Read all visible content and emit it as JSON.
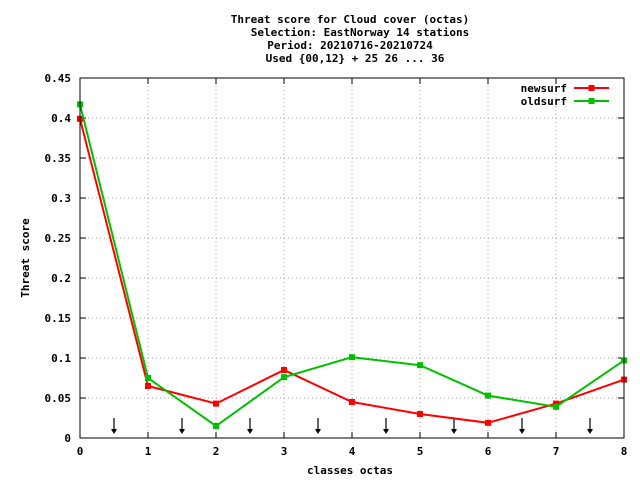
{
  "chart_data": {
    "type": "line",
    "title_lines": [
      "Threat score  for Cloud cover (octas)",
      "Selection: EastNorway     14 stations",
      "Period: 20210716-20210724",
      "Used {00,12} + 25 26 ... 36"
    ],
    "xlabel": "classes octas",
    "ylabel": "Threat score",
    "xlim": [
      0,
      8
    ],
    "ylim": [
      0,
      0.45
    ],
    "x_ticks": [
      0,
      1,
      2,
      3,
      4,
      5,
      6,
      7,
      8
    ],
    "y_ticks": [
      0,
      0.05,
      0.1,
      0.15,
      0.2,
      0.25,
      0.3,
      0.35,
      0.4,
      0.45
    ],
    "y_tick_labels": [
      "0",
      "0.05",
      "0.1",
      "0.15",
      "0.2",
      "0.25",
      "0.3",
      "0.35",
      "0.4",
      "0.45"
    ],
    "grid": true,
    "legend_position": "top-right",
    "x": [
      0,
      1,
      2,
      3,
      4,
      5,
      6,
      7,
      8
    ],
    "series": [
      {
        "name": "newsurf",
        "color": "#ff0000",
        "values": [
          0.399,
          0.065,
          0.043,
          0.085,
          0.045,
          0.03,
          0.019,
          0.043,
          0.073
        ]
      },
      {
        "name": "oldsurf",
        "color": "#00c000",
        "values": [
          0.417,
          0.075,
          0.015,
          0.076,
          0.101,
          0.091,
          0.053,
          0.039,
          0.097
        ]
      }
    ],
    "arrow_markers_x": [
      0.5,
      1.5,
      2.5,
      3.5,
      4.5,
      5.5,
      6.5,
      7.5
    ]
  }
}
